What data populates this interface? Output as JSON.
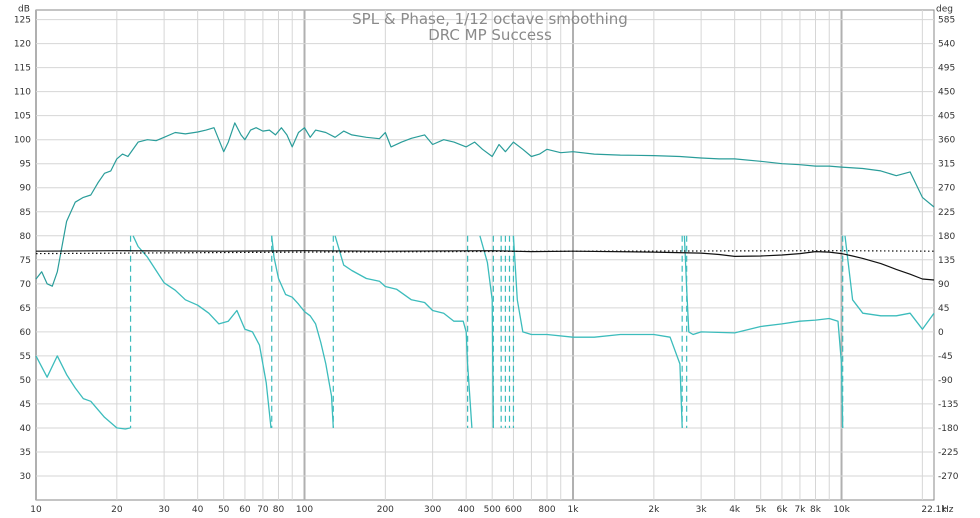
{
  "chart_data": {
    "type": "line",
    "title": "SPL & Phase, 1/12 octave smoothing",
    "subtitle": "DRC MP Success",
    "x_unit": "Hz",
    "y_left_unit": "dB",
    "y_right_unit": "deg",
    "x_scale": "log",
    "xlim": [
      10,
      22100
    ],
    "ylim_left": [
      25,
      127
    ],
    "ylim_right": [
      -315,
      603
    ],
    "grid": true,
    "x_tick_labels": [
      {
        "v": 10,
        "t": "10"
      },
      {
        "v": 20,
        "t": "20"
      },
      {
        "v": 30,
        "t": "30"
      },
      {
        "v": 40,
        "t": "40"
      },
      {
        "v": 50,
        "t": "50"
      },
      {
        "v": 60,
        "t": "60"
      },
      {
        "v": 70,
        "t": "70"
      },
      {
        "v": 80,
        "t": "80"
      },
      {
        "v": 100,
        "t": "100"
      },
      {
        "v": 200,
        "t": "200"
      },
      {
        "v": 300,
        "t": "300"
      },
      {
        "v": 400,
        "t": "400"
      },
      {
        "v": 500,
        "t": "500"
      },
      {
        "v": 600,
        "t": "600"
      },
      {
        "v": 800,
        "t": "800"
      },
      {
        "v": 1000,
        "t": "1k"
      },
      {
        "v": 2000,
        "t": "2k"
      },
      {
        "v": 3000,
        "t": "3k"
      },
      {
        "v": 4000,
        "t": "4k"
      },
      {
        "v": 5000,
        "t": "5k"
      },
      {
        "v": 6000,
        "t": "6k"
      },
      {
        "v": 7000,
        "t": "7k"
      },
      {
        "v": 8000,
        "t": "8k"
      },
      {
        "v": 10000,
        "t": "10k"
      },
      {
        "v": 22100,
        "t": "22.1k"
      }
    ],
    "y_left_ticks": [
      30,
      35,
      40,
      45,
      50,
      55,
      60,
      65,
      70,
      75,
      80,
      85,
      90,
      95,
      100,
      105,
      110,
      115,
      120,
      125
    ],
    "y_right_ticks": [
      -270,
      -225,
      -180,
      -135,
      -90,
      -45,
      0,
      45,
      90,
      135,
      180,
      225,
      270,
      315,
      360,
      405,
      450,
      495,
      540,
      585
    ],
    "series": [
      {
        "name": "",
        "axis": "left",
        "color": "#2a9d9a",
        "style": "solid",
        "x": [
          10,
          10.5,
          11,
          11.5,
          12,
          13,
          14,
          15,
          16,
          17,
          18,
          19,
          20,
          21,
          22,
          24,
          26,
          28,
          30,
          33,
          36,
          40,
          43,
          46,
          50,
          52,
          55,
          58,
          60,
          63,
          66,
          70,
          74,
          78,
          82,
          86,
          90,
          95,
          100,
          105,
          110,
          120,
          130,
          140,
          150,
          170,
          190,
          200,
          210,
          230,
          250,
          280,
          300,
          330,
          360,
          400,
          430,
          460,
          500,
          530,
          560,
          600,
          650,
          700,
          750,
          800,
          900,
          1000,
          1200,
          1500,
          2000,
          2500,
          3000,
          3500,
          4000,
          5000,
          6000,
          7000,
          8000,
          9000,
          10000,
          12000,
          14000,
          16000,
          18000,
          20000,
          22100
        ],
        "y": [
          71,
          72.5,
          70,
          69.5,
          72.5,
          83,
          87,
          88,
          88.5,
          91,
          93,
          93.5,
          96,
          97,
          96.5,
          99.5,
          100,
          99.8,
          100.5,
          101.5,
          101.2,
          101.6,
          102,
          102.5,
          97.5,
          99.5,
          103.5,
          101,
          100,
          102,
          102.5,
          101.8,
          102,
          101,
          102.5,
          101,
          98.5,
          101.5,
          102.5,
          100.5,
          102,
          101.5,
          100.5,
          101.8,
          101,
          100.5,
          100.2,
          101.5,
          98.5,
          99.5,
          100.3,
          101,
          99,
          100,
          99.5,
          98.5,
          99.5,
          98,
          96.5,
          99,
          97.5,
          99.5,
          98,
          96.5,
          97,
          98,
          97.3,
          97.5,
          97,
          96.8,
          96.7,
          96.5,
          96.2,
          96,
          96,
          95.5,
          95,
          94.8,
          94.5,
          94.5,
          94.3,
          94,
          93.5,
          92.5,
          93.3,
          88,
          86
        ]
      },
      {
        "name": "",
        "axis": "right",
        "color": "#3cbcbc",
        "style": "solid",
        "x": [
          10,
          11,
          12,
          13,
          14,
          15,
          16,
          18,
          20,
          21.5,
          22.5,
          23,
          24,
          26,
          28,
          30,
          33,
          36,
          40,
          44,
          48,
          52,
          56,
          60,
          64,
          68,
          72,
          75,
          75.5,
          77,
          80,
          85,
          90,
          95,
          100,
          105,
          110,
          115,
          120,
          126,
          128,
          130,
          140,
          150,
          170,
          190,
          200,
          220,
          250,
          280,
          300,
          330,
          360,
          390,
          400,
          405,
          420,
          450,
          480,
          500,
          505,
          520,
          540,
          560,
          580,
          600,
          620,
          650,
          700,
          800,
          1000,
          1200,
          1500,
          2000,
          2300,
          2500,
          2550,
          2600,
          2650,
          2700,
          2800,
          3000,
          4000,
          5000,
          6000,
          7000,
          8000,
          9000,
          9700,
          10000,
          10100,
          10300,
          11000,
          12000,
          14000,
          16000,
          18000,
          20000,
          22100
        ],
        "y": [
          -45,
          -85,
          -45,
          -80,
          -105,
          -125,
          -130,
          -160,
          -180,
          -182,
          -180,
          180,
          160,
          140,
          115,
          92,
          78,
          60,
          50,
          35,
          15,
          20,
          40,
          5,
          0,
          -25,
          -95,
          -180,
          180,
          140,
          100,
          70,
          65,
          52,
          38,
          30,
          15,
          -20,
          -60,
          -120,
          -180,
          180,
          125,
          115,
          100,
          95,
          85,
          80,
          60,
          55,
          40,
          35,
          20,
          20,
          0,
          -60,
          -180,
          180,
          130,
          60,
          -180,
          180,
          -180,
          180,
          -180,
          180,
          60,
          0,
          -5,
          -5,
          -10,
          -10,
          -5,
          -5,
          -10,
          -60,
          -180,
          180,
          80,
          0,
          -5,
          0,
          -2,
          10,
          15,
          20,
          22,
          25,
          20,
          -60,
          -180,
          180,
          60,
          35,
          30,
          30,
          35,
          5,
          35
        ]
      },
      {
        "name": "",
        "axis": "left",
        "color": "#111111",
        "style": "solid",
        "x": [
          10,
          20,
          50,
          100,
          200,
          500,
          700,
          1000,
          2000,
          3000,
          3500,
          4000,
          5000,
          6000,
          7000,
          8000,
          9000,
          10000,
          11000,
          12000,
          14000,
          16000,
          18000,
          20000,
          22100
        ],
        "y": [
          76.8,
          76.9,
          76.8,
          76.9,
          76.8,
          76.9,
          76.7,
          76.8,
          76.6,
          76.4,
          76.1,
          75.7,
          75.8,
          76,
          76.3,
          76.7,
          76.6,
          76.3,
          75.8,
          75.3,
          74.2,
          73,
          72,
          71,
          70.8
        ]
      },
      {
        "name": "",
        "axis": "left",
        "color": "#111111",
        "style": "dotted",
        "x": [
          10,
          100,
          1000,
          10000,
          22100
        ],
        "y": [
          76.3,
          76.6,
          76.8,
          76.9,
          76.8
        ]
      }
    ],
    "wrap_verticals": [
      22.5,
      75.5,
      128,
      405,
      505,
      540,
      560,
      580,
      600,
      2550,
      2650,
      10100
    ]
  }
}
